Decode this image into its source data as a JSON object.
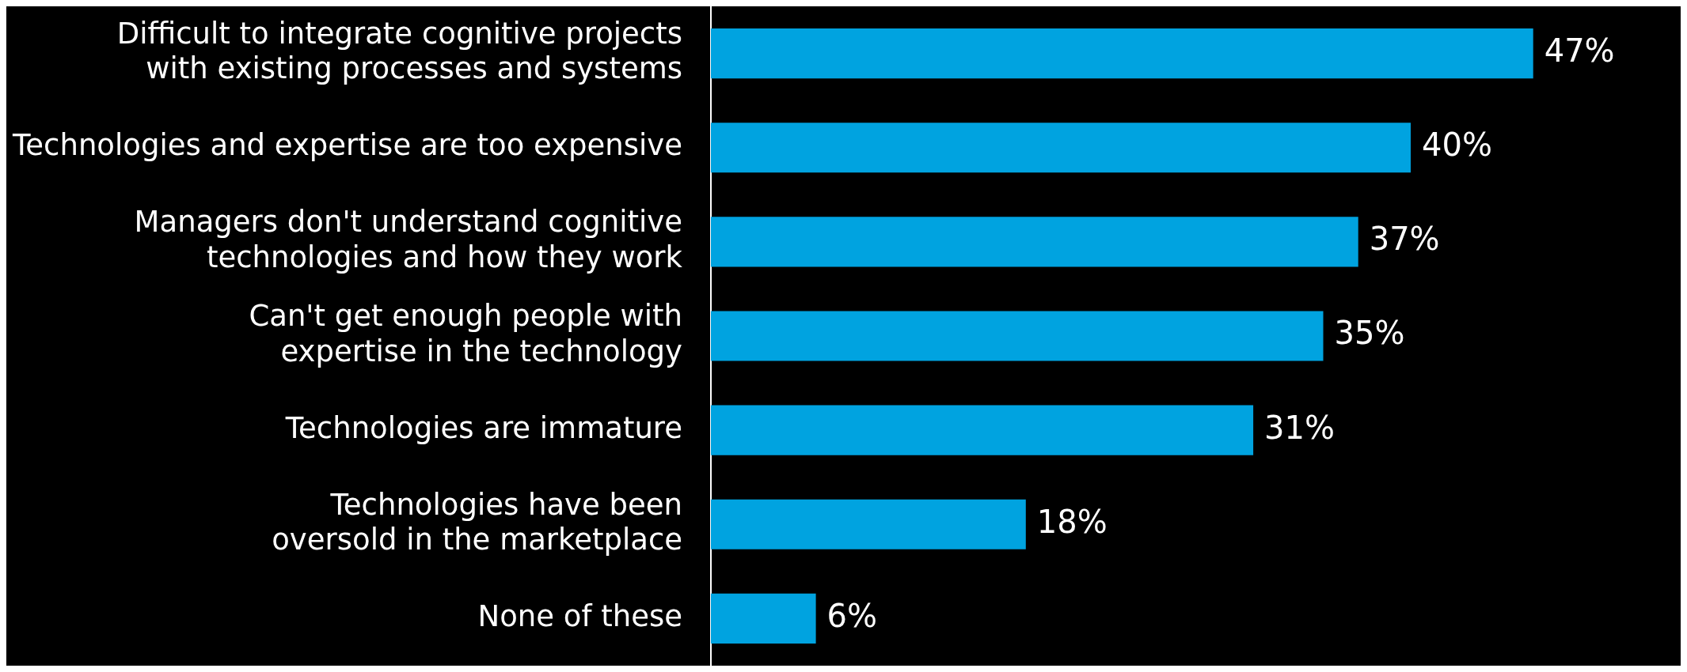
{
  "chart_data": {
    "type": "bar",
    "orientation": "horizontal",
    "categories": [
      "Difficult to integrate cognitive projects with existing processes and systems",
      "Technologies and expertise are too expensive",
      "Managers don't understand cognitive technologies and how they work",
      "Can't get enough people with expertise in the technology",
      "Technologies are immature",
      "Technologies have been oversold in the marketplace",
      "None of these"
    ],
    "values": [
      47,
      40,
      37,
      35,
      31,
      18,
      6
    ],
    "value_labels": [
      "47%",
      "40%",
      "37%",
      "35%",
      "31%",
      "18%",
      "6%"
    ],
    "color": "#00a3e0",
    "legend": false,
    "tick_labels": "y"
  }
}
